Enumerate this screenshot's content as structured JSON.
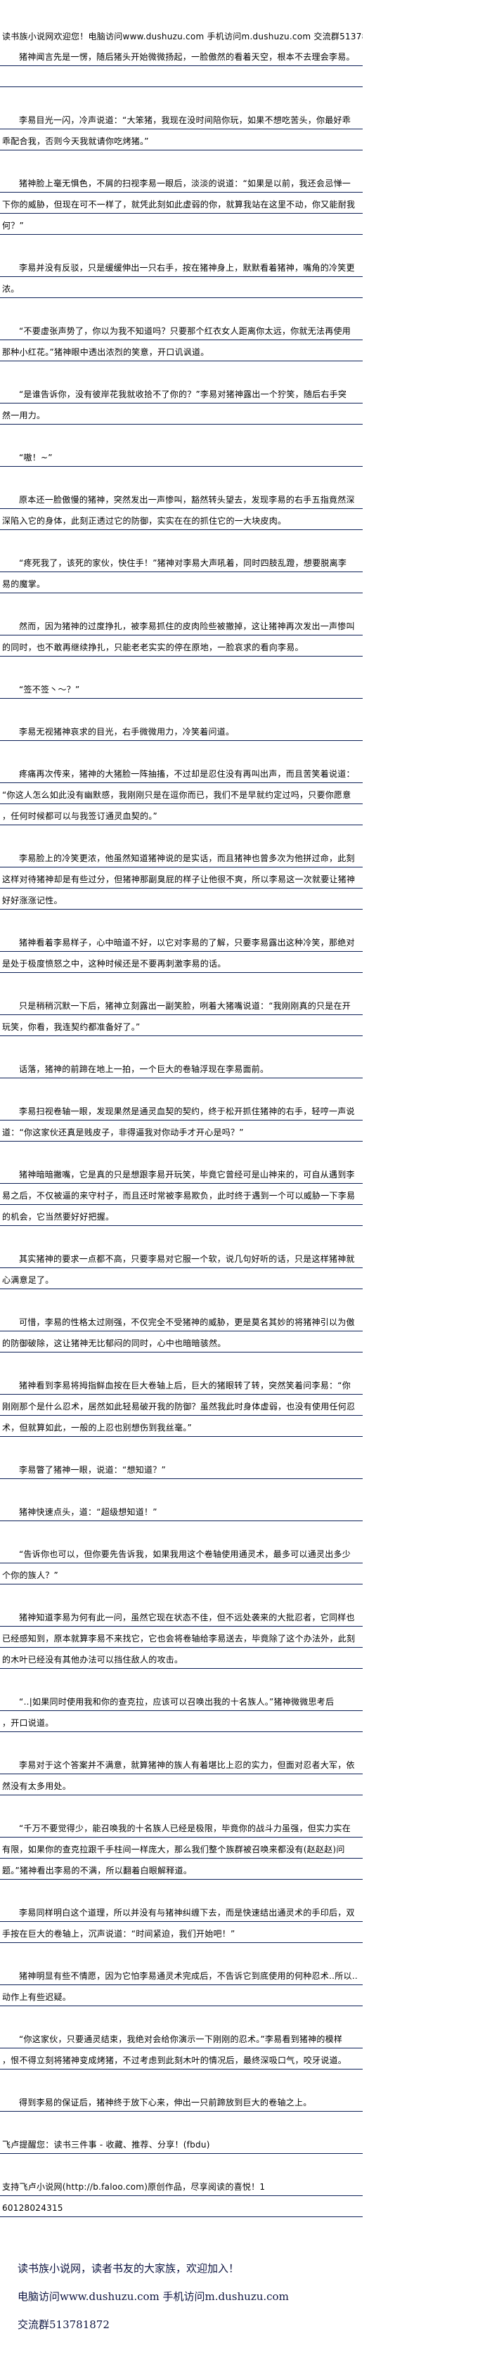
{
  "header": "读书族小说网欢迎您！电脑访问www.dushuzu.com 手机访问m.dushuzu.com 交流群513781872",
  "paragraphs": [
    [
      "猪神闻言先是一愣，随后猪头开始微微扬起，一脸傲然的看着天空，根本不去理会李易。"
    ],
    [
      "李易目光一闪，冷声说道：“大笨猪，我现在没时间陪你玩，如果不想吃苦头，你最好乖",
      "乖配合我，否则今天我就请你吃烤猪。”"
    ],
    [
      "猪神脸上毫无惧色，不屑的扫视李易一眼后，淡淡的说道：“如果是以前，我还会忌惮一",
      "下你的威胁，但现在可不一样了，就凭此刻如此虚弱的你，就算我站在这里不动，你又能耐我",
      "何？”"
    ],
    [
      "李易并没有反驳，只是缓缓伸出一只右手，按在猪神身上，默默看着猪神，嘴角的冷笑更",
      "浓。"
    ],
    [
      "“不要虚张声势了，你以为我不知道吗？只要那个红衣女人距离你太远，你就无法再使用",
      "那种小红花。”猪神眼中透出浓烈的笑意，开口讥讽道。"
    ],
    [
      "“是谁告诉你，没有彼岸花我就收拾不了你的？”李易对猪神露出一个狞笑，随后右手突",
      "然一用力。"
    ],
    [
      "“嗷！~”"
    ],
    [
      "原本还一脸傲慢的猪神，突然发出一声惨叫，豁然转头望去，发现李易的右手五指竟然深",
      "深陷入它的身体，此刻正透过它的防御，实实在在的抓住它的一大块皮肉。"
    ],
    [
      "“疼死我了，该死的家伙，快住手！”猪神对李易大声吼着，同时四肢乱蹬，想要脱离李",
      "易的魔掌。"
    ],
    [
      "然而，因为猪神的过度挣扎，被李易抓住的皮肉险些被撤掉，这让猪神再次发出一声惨叫",
      "的同时，也不敢再继续挣扎，只能老老实实的停在原地，一脸哀求的看向李易。"
    ],
    [
      "“签不签丶～？”"
    ],
    [
      "李易无视猪神哀求的目光，右手微微用力，冷笑着问道。"
    ],
    [
      "疼痛再次传来，猪神的大猪脸一阵抽搐，不过却是忍住没有再叫出声，而且苦笑着说道：",
      "“你这人怎么如此没有幽默感，我刚刚只是在逗你而已，我们不是早就约定过吗，只要你愿意",
      "，任何时候都可以与我签订通灵血契的。”"
    ],
    [
      "李易脸上的冷笑更浓，他虽然知道猪神说的是实话，而且猪神也曾多次为他拼过命，此刻",
      "这样对待猪神却是有些过分，但猪神那副臭屁的样子让他很不爽，所以李易这一次就要让猪神",
      "好好涨涨记性。"
    ],
    [
      "猪神看着李易样子，心中暗道不好，以它对李易的了解，只要李易露出这种冷笑，那绝对",
      "是处于极度愤怒之中，这种时候还是不要再刺激李易的话。"
    ],
    [
      "只是稍稍沉默一下后，猪神立刻露出一副笑脸，咧着大猪嘴说道：“我刚刚真的只是在开",
      "玩笑，你看，我连契约都准备好了。”"
    ],
    [
      "话落，猪神的前蹄在地上一拍，一个巨大的卷轴浮现在李易面前。"
    ],
    [
      "李易扫视卷轴一眼，发现果然是通灵血契的契约，终于松开抓住猪神的右手，轻哼一声说",
      "道：“你这家伙还真是贱皮子，非得逼我对你动手才开心是吗？”"
    ],
    [
      "猪神暗暗撇嘴，它是真的只是想跟李易开玩笑，毕竟它曾经可是山神来的，可自从遇到李",
      "易之后，不仅被逼的来守村子，而且还时常被李易欺负，此时终于遇到一个可以威胁一下李易",
      "的机会，它当然要好好把握。"
    ],
    [
      "其实猪神的要求一点都不高，只要李易对它服一个软，说几句好听的话，只是这样猪神就",
      "心满意足了。"
    ],
    [
      "可惜，李易的性格太过刚强，不仅完全不受猪神的威胁，更是莫名其妙的将猪神引以为傲",
      "的防御破除，这让猪神无比郁闷的同时，心中也暗暗骇然。"
    ],
    [
      "猪神看到李易将拇指鲜血按在巨大卷轴上后，巨大的猪眼转了转，突然笑着问李易：“你",
      "刚刚那个是什么忍术，居然如此轻易破开我的防御？虽然我此时身体虚弱，也没有使用任何忍",
      "术，但就算如此，一般的上忍也别想伤到我丝毫。”"
    ],
    [
      "李易瞥了猪神一眼，说道：“想知道？”"
    ],
    [
      "猪神快速点头，道：“超级想知道！”"
    ],
    [
      "“告诉你也可以，但你要先告诉我，如果我用这个卷轴使用通灵术，最多可以通灵出多少",
      "个你的族人？”"
    ],
    [
      "猪神知道李易为何有此一问，虽然它现在状态不佳，但不远处袭来的大批忍者，它同样也",
      "已经感知到，原本就算李易不来找它，它也会将卷轴给李易送去，毕竟除了这个办法外，此刻",
      "的木叶已经没有其他办法可以挡住敌人的攻击。"
    ],
    [
      "“‥|如果同时使用我和你的查克拉，应该可以召唤出我的十名族人。”猪神微微思考后",
      "，开口说道。"
    ],
    [
      "李易对于这个答案并不满意，就算猪神的族人有着堪比上忍的实力，但面对忍者大军，依",
      "然没有太多用处。"
    ],
    [
      "“千万不要觉得少，能召唤我的十名族人已经是极限，毕竟你的战斗力虽强，但实力实在",
      "有限，如果你的查克拉跟千手柱间一样庞大，那么我们整个族群被召唤来都没有(赵赵赵)问",
      "题。”猪神看出李易的不满，所以翻着白眼解释道。"
    ],
    [
      "李易同样明白这个道理，所以并没有与猪神纠缠下去，而是快速结出通灵术的手印后，双",
      "手按在巨大的卷轴上，沉声说道：“时间紧迫，我们开始吧！”"
    ],
    [
      "猪神明显有些不情愿，因为它怕李易通灵术完成后，不告诉它到底使用的何种忍术‥所以‥",
      "动作上有些迟疑。"
    ],
    [
      "“你这家伙，只要通灵结束，我绝对会给你演示一下刚刚的忍术。”李易看到猪神的模样",
      "，恨不得立刻将猪神变成烤猪，不过考虑到此刻木叶的情况后，最终深吸口气，咬牙说道。"
    ],
    [
      "得到李易的保证后，猪神终于放下心来，伸出一只前蹄放到巨大的卷轴之上。"
    ]
  ],
  "notices": [
    [
      "飞卢提醒您：读书三件事 - 收藏、推荐、分享！(fbdu)"
    ],
    [
      "支持飞卢小说网(http://b.faloo.com)原创作品，尽享阅读的喜悦！1",
      "60128024315"
    ]
  ],
  "footer": {
    "slogan": "读书族小说网，读者书友的大家族，欢迎加入！",
    "urls": "电脑访问www.dushuzu.com 手机访问m.dushuzu.com",
    "group": "交流群513781872"
  },
  "colors": {
    "rule": "#0b1f57",
    "footer_text": "#0d1440"
  }
}
